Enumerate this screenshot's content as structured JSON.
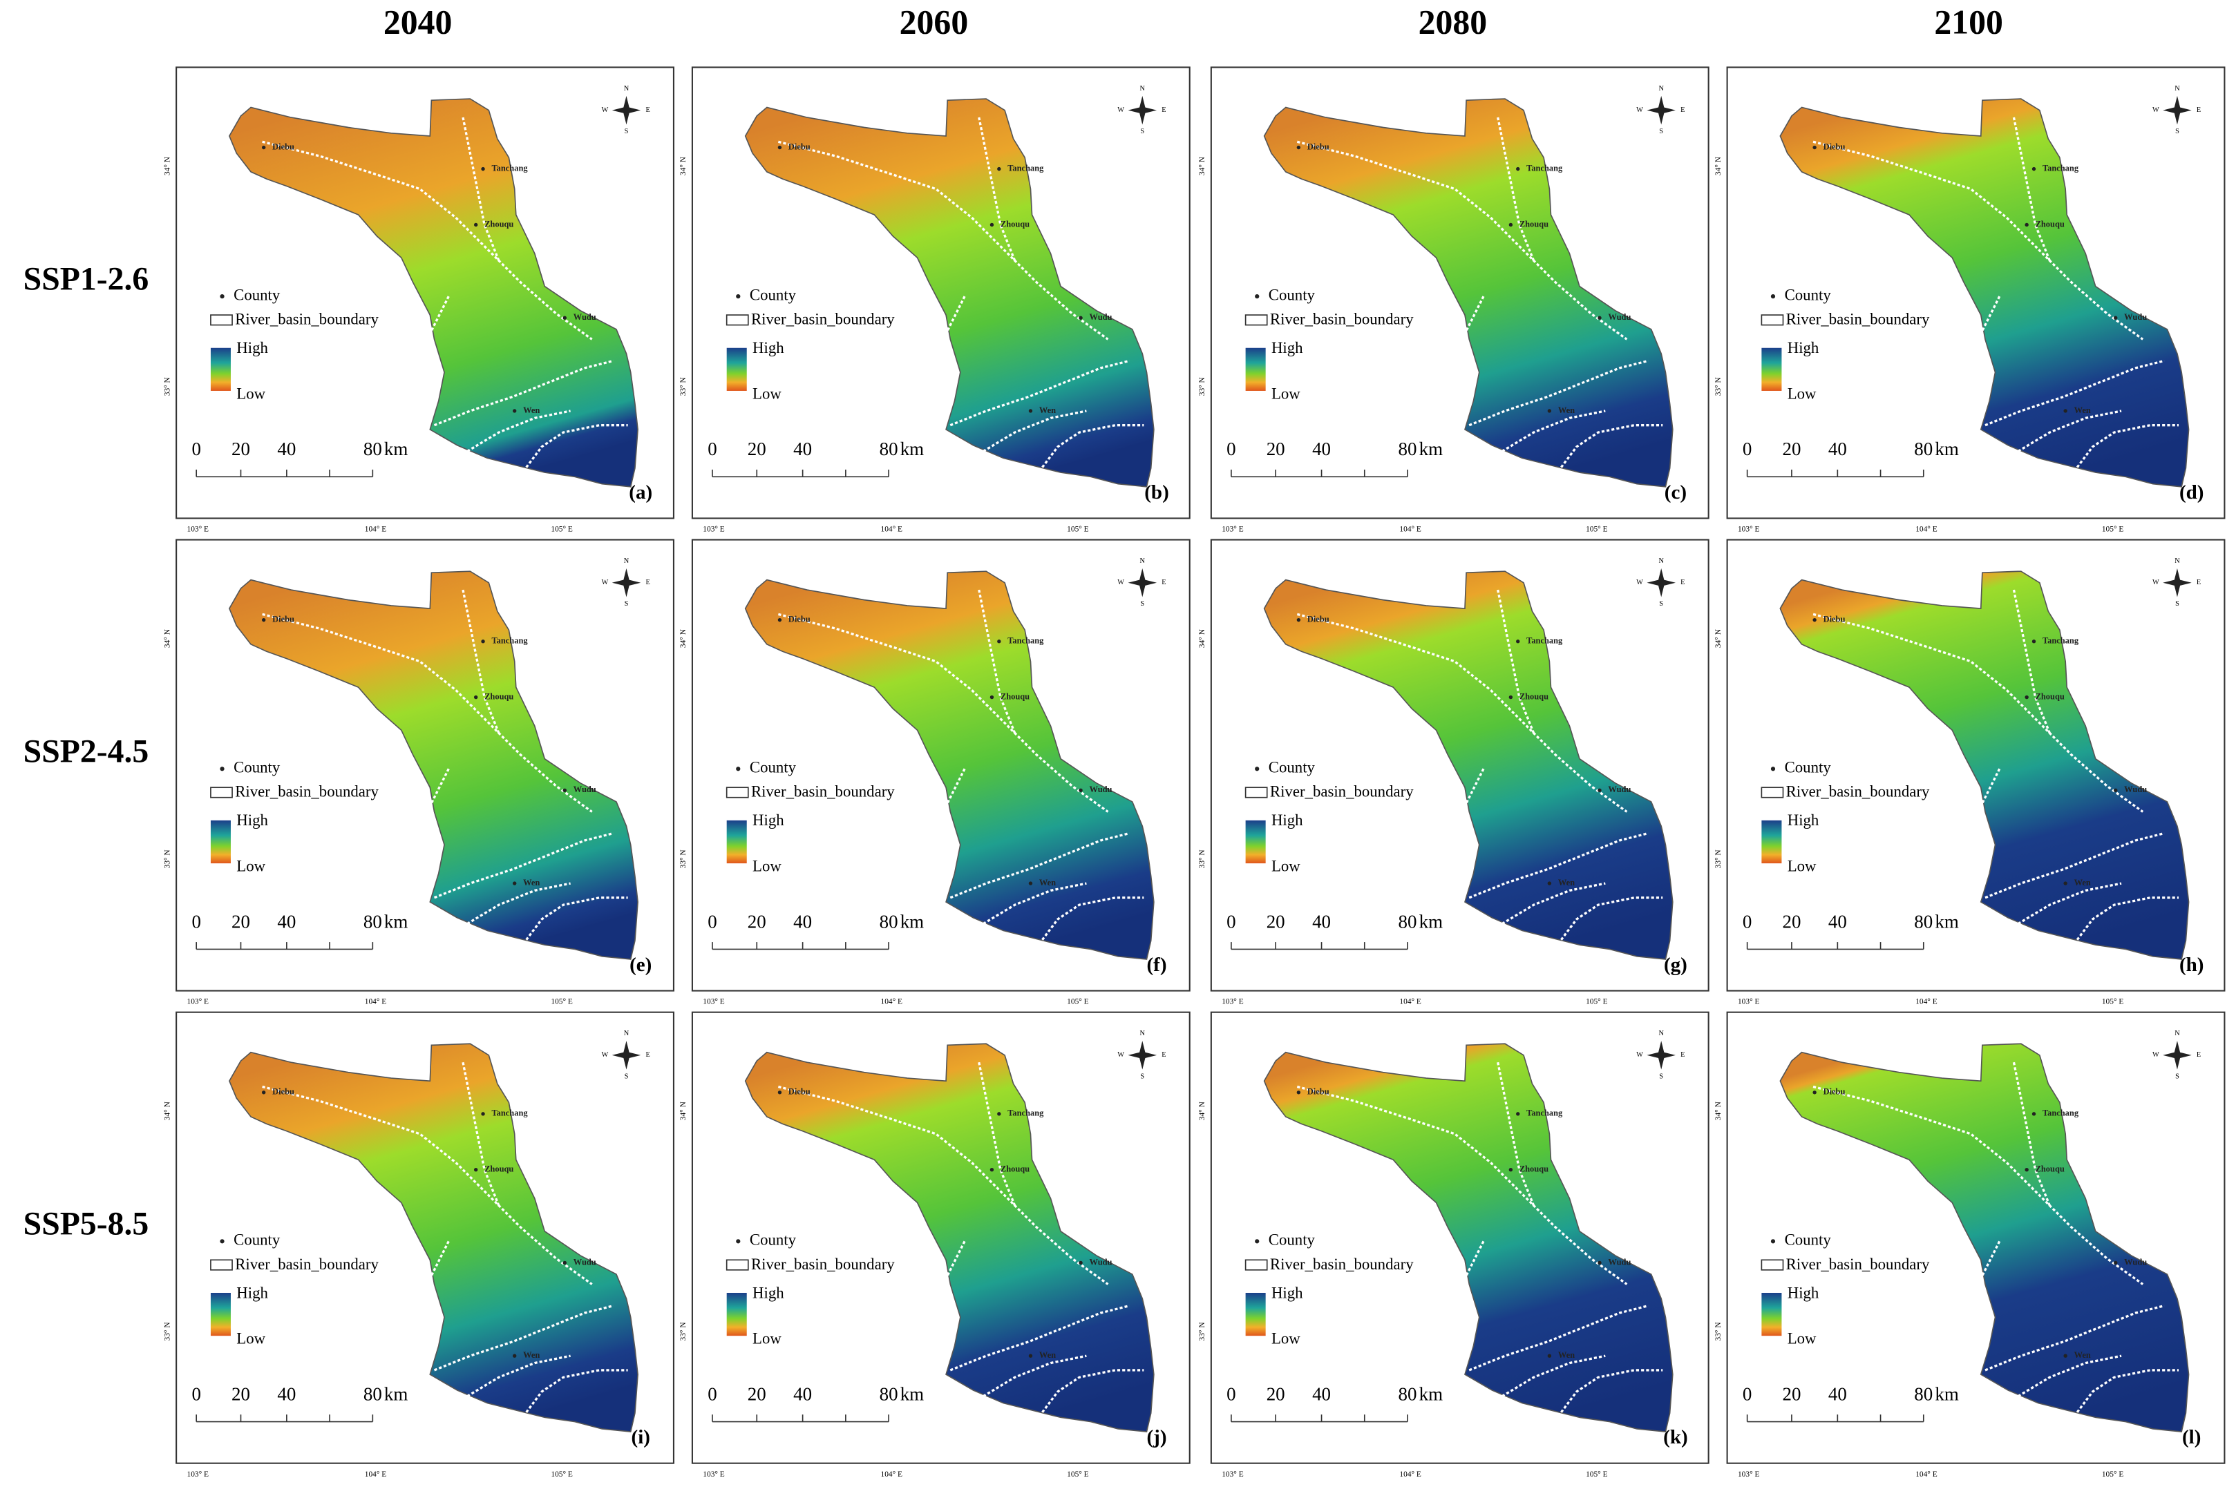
{
  "columns": [
    "2040",
    "2060",
    "2080",
    "2100"
  ],
  "rows": [
    "SSP1-2.6",
    "SSP2-4.5",
    "SSP5-8.5"
  ],
  "panels": [
    "(a)",
    "(b)",
    "(c)",
    "(d)",
    "(e)",
    "(f)",
    "(g)",
    "(h)",
    "(i)",
    "(j)",
    "(k)",
    "(l)"
  ],
  "legend": {
    "county": "County",
    "boundary": "River_basin_boundary",
    "high": "High",
    "low": "Low"
  },
  "scale_bar": {
    "ticks": [
      "0",
      "20",
      "40",
      "80"
    ],
    "unit": "km"
  },
  "towns": [
    "Diebu",
    "Tanchang",
    "Zhouqu",
    "Wudu",
    "Wen"
  ],
  "longitudes": [
    "103° E",
    "104° E",
    "105° E"
  ],
  "latitudes": [
    "34° N",
    "33° N"
  ],
  "compass": {
    "n": "N",
    "s": "S",
    "e": "E",
    "w": "W"
  }
}
